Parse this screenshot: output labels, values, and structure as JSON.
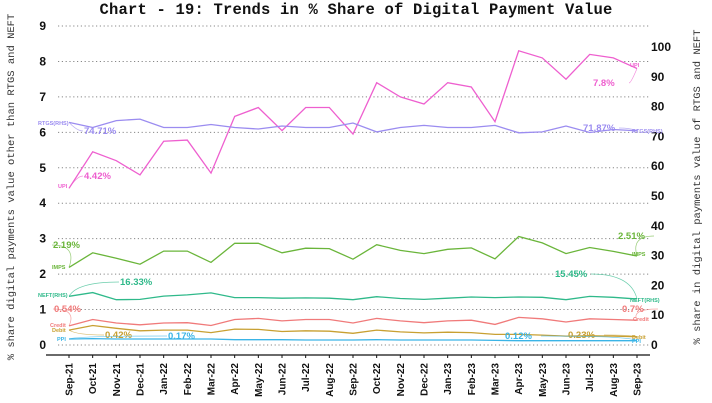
{
  "chart_data": {
    "type": "line",
    "title": "Chart - 19: Trends in % Share of Digital Payment Value",
    "xlabel": "",
    "ylabel": "% share digital payments value other than RTGS and NEFT",
    "ylabel_right": "% share in digital payments value of RTGS and NEFT",
    "ylim": [
      0,
      9
    ],
    "ylim_right": [
      0,
      110
    ],
    "yticks": [
      "0",
      "1",
      "2",
      "3",
      "4",
      "5",
      "6",
      "7",
      "8",
      "9"
    ],
    "yticks_right": [
      "0",
      "10",
      "20",
      "30",
      "40",
      "50",
      "60",
      "70",
      "80",
      "90",
      "100"
    ],
    "grid": "horizontal dotted",
    "legend_position": "inline labels",
    "categories": [
      "Sep-21",
      "Oct-21",
      "Nov-21",
      "Dec-21",
      "Jan-22",
      "Feb-22",
      "Mar-22",
      "Apr-22",
      "May-22",
      "Jun-22",
      "Jul-22",
      "Aug-22",
      "Sep-22",
      "Oct-22",
      "Nov-22",
      "Dec-22",
      "Jan-23",
      "Feb-23",
      "Mar-23",
      "Apr-23",
      "May-23",
      "Jun-23",
      "Jul-23",
      "Aug-23",
      "Sep-23"
    ],
    "series": [
      {
        "name": "UPI",
        "axis": "left",
        "color": "#ee5fcf",
        "tag": "UPI",
        "values": [
          4.42,
          5.45,
          5.2,
          4.8,
          5.75,
          5.78,
          4.85,
          6.45,
          6.7,
          6.05,
          6.7,
          6.7,
          5.95,
          7.4,
          7.0,
          6.8,
          7.4,
          7.28,
          6.3,
          8.3,
          8.1,
          7.5,
          8.2,
          8.1,
          7.8
        ],
        "start_label": "4.42%",
        "end_label": "7.8%"
      },
      {
        "name": "RTGS(RHS)",
        "axis": "right",
        "color": "#9b8cf0",
        "tag": "RTGS(RHS)",
        "values": [
          74.71,
          73.0,
          75.3,
          75.8,
          73.0,
          73.0,
          74.0,
          73.0,
          72.5,
          73.5,
          73.0,
          73.0,
          74.5,
          71.5,
          73.0,
          73.7,
          73.0,
          73.0,
          73.7,
          71.2,
          71.5,
          73.5,
          71.3,
          72.3,
          71.87
        ],
        "start_label": "74.71%",
        "end_label": "71.87%"
      },
      {
        "name": "IMPS",
        "axis": "left",
        "color": "#6ab53a",
        "tag": "IMPS",
        "values": [
          2.19,
          2.6,
          2.45,
          2.28,
          2.65,
          2.65,
          2.33,
          2.87,
          2.87,
          2.6,
          2.73,
          2.72,
          2.42,
          2.83,
          2.67,
          2.58,
          2.7,
          2.74,
          2.43,
          3.06,
          2.88,
          2.58,
          2.75,
          2.64,
          2.51
        ],
        "start_label": "2.19%",
        "end_label": "2.51%"
      },
      {
        "name": "NEFT(RHS)",
        "axis": "right",
        "color": "#2fb98a",
        "tag": "NEFT(RHS)",
        "values": [
          16.33,
          17.6,
          15.2,
          15.3,
          16.4,
          16.8,
          17.5,
          15.9,
          15.9,
          15.7,
          15.8,
          15.7,
          15.2,
          16.2,
          15.6,
          15.3,
          15.7,
          16.1,
          15.9,
          16.1,
          16.0,
          15.2,
          16.3,
          16.0,
          15.45
        ],
        "start_label": "16.33%",
        "end_label": "15.45%"
      },
      {
        "name": "Credit",
        "axis": "left",
        "color": "#f07a7a",
        "tag": "Credit",
        "values": [
          0.54,
          0.72,
          0.62,
          0.57,
          0.62,
          0.63,
          0.55,
          0.72,
          0.75,
          0.68,
          0.72,
          0.72,
          0.62,
          0.75,
          0.68,
          0.63,
          0.68,
          0.7,
          0.58,
          0.78,
          0.74,
          0.65,
          0.74,
          0.72,
          0.7
        ],
        "start_label": "0.54%",
        "end_label": "0.7%"
      },
      {
        "name": "Debit",
        "axis": "left",
        "color": "#c8a032",
        "tag": "Debit",
        "values": [
          0.42,
          0.55,
          0.47,
          0.4,
          0.42,
          0.42,
          0.35,
          0.45,
          0.44,
          0.38,
          0.4,
          0.39,
          0.33,
          0.42,
          0.37,
          0.34,
          0.36,
          0.35,
          0.3,
          0.3,
          0.28,
          0.25,
          0.26,
          0.25,
          0.23
        ],
        "start_label": "0.42%",
        "end_label": "0.23%"
      },
      {
        "name": "PPI",
        "axis": "left",
        "color": "#3ab4e6",
        "tag": "PPI",
        "values": [
          0.17,
          0.18,
          0.17,
          0.17,
          0.17,
          0.17,
          0.17,
          0.15,
          0.15,
          0.15,
          0.14,
          0.14,
          0.14,
          0.15,
          0.14,
          0.14,
          0.14,
          0.14,
          0.13,
          0.12,
          0.12,
          0.12,
          0.12,
          0.12,
          0.12
        ],
        "start_label": "0.17%",
        "end_label": "0.12%"
      }
    ]
  }
}
